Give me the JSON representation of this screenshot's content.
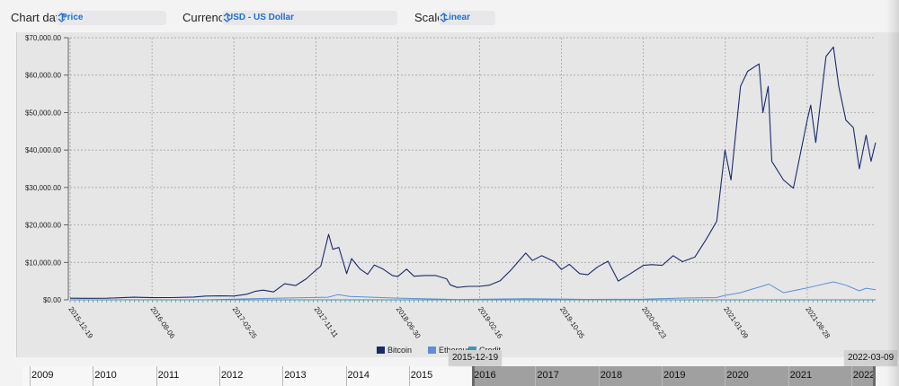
{
  "controls": {
    "chart_data_label": "Chart data",
    "chart_data_value": "Price",
    "currency_label": "Currency",
    "currency_value": "USD - US Dollar",
    "scale_label": "Scale",
    "scale_value": "Linear"
  },
  "navigator": {
    "years": [
      "2009",
      "2010",
      "2011",
      "2012",
      "2013",
      "2014",
      "2015",
      "2016",
      "2017",
      "2018",
      "2019",
      "2020",
      "2021",
      "2022"
    ],
    "range_start_label": "2015-12-19",
    "range_end_label": "2022-03-09"
  },
  "chart_data": {
    "type": "line",
    "title": "",
    "xlabel": "",
    "ylabel": "",
    "y_tick_labels": [
      "$0.00",
      "$10,000.00",
      "$20,000.00",
      "$30,000.00",
      "$40,000.00",
      "$50,000.00",
      "$60,000.00",
      "$70,000.00"
    ],
    "ylim": [
      0,
      70000
    ],
    "x_tick_labels": [
      "2015-12-19",
      "2016-08-06",
      "2017-03-25",
      "2017-11-11",
      "2018-06-30",
      "2019-02-16",
      "2019-10-05",
      "2020-05-23",
      "2021-01-09",
      "2021-08-28"
    ],
    "xlim": [
      "2015-12-19",
      "2022-03-09"
    ],
    "grid": true,
    "legend_position": "bottom",
    "legend": [
      "Bitcoin",
      "Ethereum",
      "Credit"
    ],
    "series": [
      {
        "name": "Bitcoin",
        "color": "#1a2a6c",
        "points": [
          [
            "2015-12-19",
            430
          ],
          [
            "2016-02-01",
            400
          ],
          [
            "2016-04-01",
            420
          ],
          [
            "2016-06-15",
            700
          ],
          [
            "2016-08-06",
            580
          ],
          [
            "2016-10-01",
            610
          ],
          [
            "2016-12-01",
            750
          ],
          [
            "2017-01-05",
            1000
          ],
          [
            "2017-02-15",
            1050
          ],
          [
            "2017-03-25",
            1000
          ],
          [
            "2017-05-01",
            1500
          ],
          [
            "2017-05-25",
            2300
          ],
          [
            "2017-06-15",
            2600
          ],
          [
            "2017-07-15",
            2100
          ],
          [
            "2017-08-15",
            4300
          ],
          [
            "2017-09-15",
            3800
          ],
          [
            "2017-10-15",
            5600
          ],
          [
            "2017-11-05",
            7400
          ],
          [
            "2017-11-25",
            9000
          ],
          [
            "2017-12-17",
            17500
          ],
          [
            "2017-12-29",
            13500
          ],
          [
            "2018-01-15",
            14000
          ],
          [
            "2018-02-06",
            7000
          ],
          [
            "2018-02-20",
            11000
          ],
          [
            "2018-03-15",
            8300
          ],
          [
            "2018-04-06",
            6800
          ],
          [
            "2018-04-25",
            9300
          ],
          [
            "2018-05-20",
            8200
          ],
          [
            "2018-06-15",
            6500
          ],
          [
            "2018-06-30",
            6200
          ],
          [
            "2018-07-25",
            8200
          ],
          [
            "2018-08-15",
            6300
          ],
          [
            "2018-09-15",
            6500
          ],
          [
            "2018-10-15",
            6500
          ],
          [
            "2018-11-15",
            5600
          ],
          [
            "2018-11-25",
            4000
          ],
          [
            "2018-12-15",
            3300
          ],
          [
            "2019-01-15",
            3600
          ],
          [
            "2019-02-16",
            3600
          ],
          [
            "2019-03-15",
            3900
          ],
          [
            "2019-04-15",
            5100
          ],
          [
            "2019-05-15",
            7900
          ],
          [
            "2019-06-26",
            12500
          ],
          [
            "2019-07-15",
            10500
          ],
          [
            "2019-08-10",
            11800
          ],
          [
            "2019-09-15",
            10200
          ],
          [
            "2019-10-05",
            8100
          ],
          [
            "2019-10-27",
            9500
          ],
          [
            "2019-11-25",
            7000
          ],
          [
            "2019-12-18",
            6700
          ],
          [
            "2020-01-15",
            8800
          ],
          [
            "2020-02-13",
            10300
          ],
          [
            "2020-03-13",
            5000
          ],
          [
            "2020-04-15",
            6900
          ],
          [
            "2020-05-23",
            9200
          ],
          [
            "2020-06-15",
            9400
          ],
          [
            "2020-07-15",
            9200
          ],
          [
            "2020-08-15",
            11800
          ],
          [
            "2020-09-10",
            10200
          ],
          [
            "2020-10-15",
            11400
          ],
          [
            "2020-11-15",
            16000
          ],
          [
            "2020-12-16",
            21000
          ],
          [
            "2021-01-08",
            40000
          ],
          [
            "2021-01-25",
            32000
          ],
          [
            "2021-02-21",
            57000
          ],
          [
            "2021-03-13",
            61000
          ],
          [
            "2021-04-14",
            63000
          ],
          [
            "2021-04-25",
            50000
          ],
          [
            "2021-05-10",
            57000
          ],
          [
            "2021-05-20",
            37000
          ],
          [
            "2021-06-22",
            32000
          ],
          [
            "2021-07-20",
            29800
          ],
          [
            "2021-08-28",
            48000
          ],
          [
            "2021-09-07",
            52000
          ],
          [
            "2021-09-21",
            42000
          ],
          [
            "2021-10-20",
            65000
          ],
          [
            "2021-11-10",
            67500
          ],
          [
            "2021-11-25",
            57000
          ],
          [
            "2021-12-15",
            48000
          ],
          [
            "2022-01-05",
            46000
          ],
          [
            "2022-01-22",
            35000
          ],
          [
            "2022-02-10",
            44000
          ],
          [
            "2022-02-24",
            37000
          ],
          [
            "2022-03-09",
            42000
          ]
        ]
      },
      {
        "name": "Ethereum",
        "color": "#5b8fd6",
        "points": [
          [
            "2015-12-19",
            1
          ],
          [
            "2017-01-01",
            10
          ],
          [
            "2017-06-15",
            350
          ],
          [
            "2017-12-15",
            700
          ],
          [
            "2018-01-13",
            1400
          ],
          [
            "2018-02-15",
            900
          ],
          [
            "2018-06-30",
            450
          ],
          [
            "2018-12-15",
            90
          ],
          [
            "2019-06-25",
            300
          ],
          [
            "2019-12-15",
            130
          ],
          [
            "2020-05-23",
            200
          ],
          [
            "2020-09-01",
            450
          ],
          [
            "2020-12-15",
            600
          ],
          [
            "2021-01-09",
            1200
          ],
          [
            "2021-02-20",
            1900
          ],
          [
            "2021-05-12",
            4200
          ],
          [
            "2021-06-22",
            1900
          ],
          [
            "2021-08-28",
            3200
          ],
          [
            "2021-11-10",
            4800
          ],
          [
            "2021-12-15",
            3900
          ],
          [
            "2022-01-22",
            2400
          ],
          [
            "2022-02-10",
            3100
          ],
          [
            "2022-03-09",
            2700
          ]
        ]
      },
      {
        "name": "Credit",
        "color": "#3f96b0",
        "points": [
          [
            "2015-12-19",
            2
          ],
          [
            "2017-06-01",
            3
          ],
          [
            "2018-01-10",
            5
          ],
          [
            "2018-06-30",
            2
          ],
          [
            "2020-01-01",
            1
          ],
          [
            "2022-03-09",
            1
          ]
        ]
      }
    ]
  }
}
